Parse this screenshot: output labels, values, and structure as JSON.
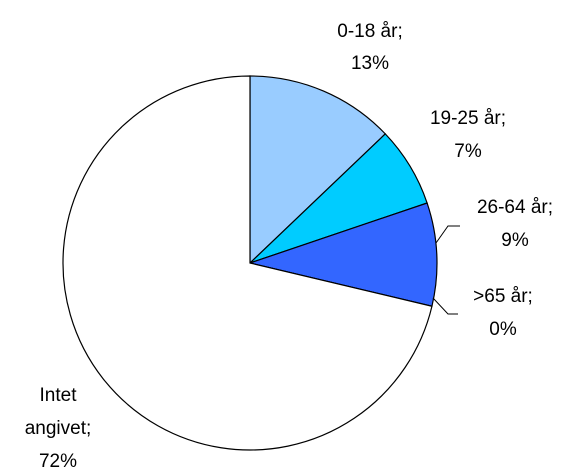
{
  "chart_data": {
    "type": "pie",
    "title": "",
    "slices": [
      {
        "label": "0-18 år",
        "value": 13,
        "value_label": "13%",
        "color": "#99CCFF"
      },
      {
        "label": "19-25 år",
        "value": 7,
        "value_label": "7%",
        "color": "#00CCFF"
      },
      {
        "label": "26-64 år",
        "value": 9,
        "value_label": "9%",
        "color": "#3366FF"
      },
      {
        "label": ">65 år",
        "value": 0,
        "value_label": "0%",
        "color": "#000080"
      },
      {
        "label": "Intet angivet",
        "value": 72,
        "value_label": "72%",
        "color": "#FFFFFF"
      }
    ],
    "outline_color": "#000000",
    "legend": "none",
    "label_style": "category; percent"
  }
}
